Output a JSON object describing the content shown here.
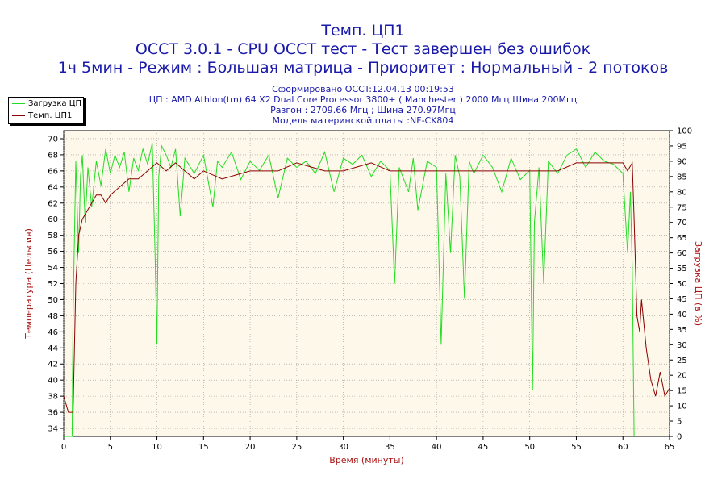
{
  "header": {
    "title1": "Темп. ЦП1",
    "title2": "OCCT 3.0.1 - CPU OCCT тест - Тест завершен без ошибок",
    "title3": "1ч 5мин - Режим : Большая матрица - Приоритет : Нормальный - 2 потоков"
  },
  "info": {
    "line1": "Сформировано OCCT:12.04.13 00:19:53",
    "line2": "ЦП : AMD Athlon(tm) 64 X2 Dual Core Processor 3800+ ( Manchester ) 2000 Мгц Шина 200Мгц",
    "line3": "Разгон : 2709.66 Мгц ; Шина 270.97Мгц",
    "line4": "Модель материнской платы :NF-CK804"
  },
  "colors": {
    "load": "#22dd22",
    "temp": "#8b0000",
    "plot_bg": "#fdf8ea",
    "grid": "#999999",
    "axis_label": "#aa1111",
    "title": "#1a1aaa"
  },
  "chart_data": {
    "type": "line",
    "xlabel": "Время (минуты)",
    "ylabel_left": "Температура (Цельсия)",
    "ylabel_right": "Загрузка ЦП (в %)",
    "xlim": [
      0,
      65
    ],
    "ylim_left": [
      33,
      71
    ],
    "ylim_right": [
      0,
      100
    ],
    "x_ticks": [
      0,
      5,
      10,
      15,
      20,
      25,
      30,
      35,
      40,
      45,
      50,
      55,
      60,
      65
    ],
    "y_ticks_left": [
      34,
      36,
      38,
      40,
      42,
      44,
      46,
      48,
      50,
      52,
      54,
      56,
      58,
      60,
      62,
      64,
      66,
      68,
      70
    ],
    "y_ticks_right": [
      0,
      5,
      10,
      15,
      20,
      25,
      30,
      35,
      40,
      45,
      50,
      55,
      60,
      65,
      70,
      75,
      80,
      85,
      90,
      95,
      100
    ],
    "grid": true,
    "legend_position": "top-left",
    "series": [
      {
        "name": "Загрузка ЦП",
        "axis": "right",
        "x": [
          0,
          0.9,
          1.0,
          1.3,
          1.6,
          1.8,
          2.0,
          2.3,
          2.6,
          3.0,
          3.5,
          4.0,
          4.5,
          5.0,
          5.5,
          6.0,
          6.5,
          7.0,
          7.5,
          8.0,
          8.5,
          9.0,
          9.5,
          9.8,
          10.0,
          10.2,
          10.5,
          11.0,
          11.5,
          12.0,
          12.5,
          13.0,
          14.0,
          15.0,
          16.0,
          16.5,
          17.0,
          18.0,
          19.0,
          20.0,
          21.0,
          22.0,
          23.0,
          24.0,
          25.0,
          26.0,
          27.0,
          28.0,
          29.0,
          30.0,
          31.0,
          32.0,
          33.0,
          34.0,
          35.0,
          35.5,
          36.0,
          37.0,
          37.5,
          38.0,
          39.0,
          40.0,
          40.5,
          41.0,
          41.5,
          42.0,
          42.5,
          43.0,
          43.5,
          44.0,
          45.0,
          46.0,
          47.0,
          48.0,
          49.0,
          50.0,
          50.3,
          50.5,
          51.0,
          51.5,
          52.0,
          53.0,
          54.0,
          55.0,
          56.0,
          57.0,
          58.0,
          59.0,
          60.0,
          60.5,
          60.8,
          61.0,
          61.2
        ],
        "values": [
          0,
          0,
          40,
          90,
          60,
          85,
          92,
          70,
          88,
          75,
          90,
          82,
          94,
          86,
          92,
          88,
          93,
          80,
          91,
          87,
          94,
          89,
          96,
          60,
          30,
          85,
          95,
          92,
          88,
          94,
          72,
          91,
          86,
          92,
          75,
          90,
          88,
          93,
          84,
          90,
          87,
          92,
          78,
          91,
          88,
          90,
          86,
          93,
          80,
          91,
          89,
          92,
          85,
          90,
          87,
          50,
          88,
          80,
          91,
          74,
          90,
          88,
          30,
          86,
          60,
          92,
          85,
          45,
          90,
          86,
          92,
          88,
          80,
          91,
          84,
          87,
          15,
          70,
          88,
          50,
          90,
          86,
          92,
          94,
          88,
          93,
          90,
          89,
          86,
          60,
          80,
          55,
          0
        ]
      },
      {
        "name": "Темп. ЦП1",
        "axis": "left",
        "x": [
          0,
          0.5,
          1.0,
          1.3,
          1.6,
          2.0,
          2.5,
          3.0,
          3.5,
          4.0,
          4.5,
          5.0,
          6.0,
          7.0,
          8.0,
          9.0,
          10.0,
          11.0,
          12.0,
          13.0,
          14.0,
          15.0,
          17.0,
          20.0,
          23.0,
          25.0,
          28.0,
          30.0,
          33.0,
          35.0,
          38.0,
          40.0,
          43.0,
          45.0,
          48.0,
          50.0,
          53.0,
          55.0,
          58.0,
          60.0,
          60.5,
          61.0,
          61.2,
          61.5,
          61.8,
          62.0,
          62.5,
          63.0,
          63.5,
          64.0,
          64.5,
          65.0
        ],
        "values": [
          38,
          36,
          36,
          52,
          58,
          60,
          61,
          62,
          63,
          63,
          62,
          63,
          64,
          65,
          65,
          66,
          67,
          66,
          67,
          66,
          65,
          66,
          65,
          66,
          66,
          67,
          66,
          66,
          67,
          66,
          66,
          66,
          66,
          66,
          66,
          66,
          66,
          67,
          67,
          67,
          66,
          67,
          60,
          48,
          46,
          50,
          44,
          40,
          38,
          41,
          38,
          39
        ]
      }
    ]
  }
}
